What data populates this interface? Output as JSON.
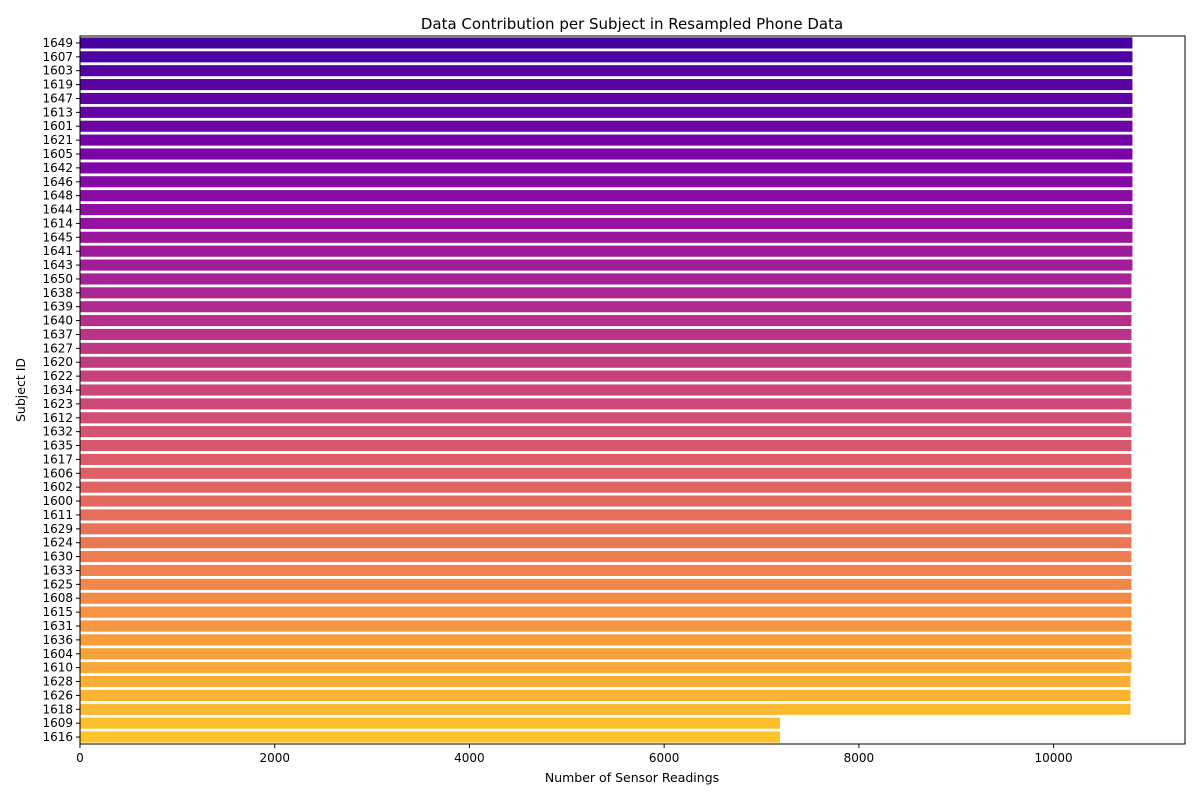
{
  "chart_data": {
    "type": "bar",
    "orientation": "horizontal",
    "title": "Data Contribution per Subject in Resampled Phone Data",
    "xlabel": "Number of Sensor Readings",
    "ylabel": "Subject ID",
    "xlim": [
      0,
      11350
    ],
    "xticks": [
      0,
      2000,
      4000,
      6000,
      8000,
      10000
    ],
    "grid": false,
    "legend": "none",
    "colormap": "plasma",
    "categories": [
      "1649",
      "1607",
      "1603",
      "1619",
      "1647",
      "1613",
      "1601",
      "1621",
      "1605",
      "1642",
      "1646",
      "1648",
      "1644",
      "1614",
      "1645",
      "1641",
      "1643",
      "1650",
      "1638",
      "1639",
      "1640",
      "1637",
      "1627",
      "1620",
      "1622",
      "1634",
      "1623",
      "1612",
      "1632",
      "1635",
      "1617",
      "1606",
      "1602",
      "1600",
      "1611",
      "1629",
      "1624",
      "1630",
      "1633",
      "1625",
      "1608",
      "1615",
      "1631",
      "1636",
      "1604",
      "1610",
      "1628",
      "1626",
      "1618",
      "1609",
      "1616"
    ],
    "values": [
      10810,
      10810,
      10810,
      10810,
      10810,
      10810,
      10810,
      10810,
      10810,
      10810,
      10810,
      10810,
      10810,
      10810,
      10810,
      10810,
      10810,
      10800,
      10800,
      10800,
      10800,
      10800,
      10800,
      10800,
      10800,
      10800,
      10800,
      10800,
      10800,
      10800,
      10800,
      10800,
      10800,
      10800,
      10800,
      10800,
      10800,
      10800,
      10800,
      10800,
      10800,
      10800,
      10800,
      10800,
      10800,
      10800,
      10790,
      10790,
      10790,
      7190,
      7190
    ]
  }
}
